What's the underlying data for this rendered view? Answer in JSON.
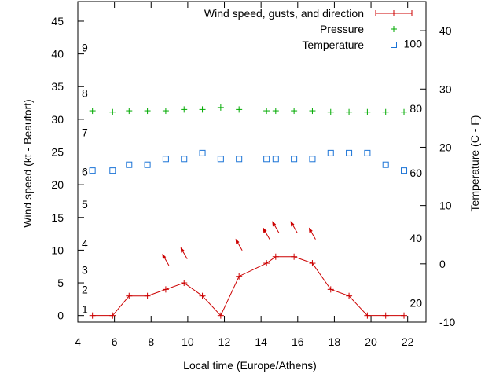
{
  "chart_data": {
    "type": "line",
    "title": "",
    "xlabel": "Local time (Europe/Athens)",
    "ylabel_left": "Wind speed (kt - Beaufort)",
    "ylabel_right": "Temperature (C - F)",
    "xlim": [
      4,
      23
    ],
    "ylim_left": [
      -1,
      48
    ],
    "ylim_right": [
      -10,
      45
    ],
    "x_ticks": [
      4,
      6,
      8,
      10,
      12,
      14,
      16,
      18,
      20,
      22
    ],
    "x_tick_labels": [
      "4",
      "6",
      "8",
      "10",
      "12",
      "14",
      "16",
      "18",
      "20",
      "22"
    ],
    "y_left_ticks": [
      0,
      5,
      10,
      15,
      20,
      25,
      30,
      35,
      40,
      45
    ],
    "y_left_tick_labels": [
      "0",
      "5",
      "10",
      "15",
      "20",
      "25",
      "30",
      "35",
      "40",
      "45"
    ],
    "y_right_ticks": [
      -10,
      0,
      10,
      20,
      30,
      40
    ],
    "y_right_tick_labels": [
      "-10",
      "0",
      "10",
      "20",
      "30",
      "40"
    ],
    "beaufort_labels": [
      {
        "label": "1",
        "kt": 1
      },
      {
        "label": "2",
        "kt": 4
      },
      {
        "label": "3",
        "kt": 7
      },
      {
        "label": "4",
        "kt": 11
      },
      {
        "label": "5",
        "kt": 17
      },
      {
        "label": "6",
        "kt": 22
      },
      {
        "label": "7",
        "kt": 28
      },
      {
        "label": "8",
        "kt": 34
      },
      {
        "label": "9",
        "kt": 41
      }
    ],
    "fahrenheit_labels": [
      {
        "label": "20",
        "celsius": -6.7
      },
      {
        "label": "40",
        "celsius": 4.4
      },
      {
        "label": "60",
        "celsius": 15.6
      },
      {
        "label": "80",
        "celsius": 26.7
      },
      {
        "label": "100",
        "celsius": 37.8
      }
    ],
    "legend": [
      {
        "name": "Wind speed, gusts, and direction",
        "color": "#cc0000",
        "style": "line+plus"
      },
      {
        "name": "Pressure",
        "color": "#00aa00",
        "style": "plus"
      },
      {
        "name": "Temperature",
        "color": "#1a73d6",
        "style": "square"
      }
    ],
    "wind_speed": {
      "name": "Wind speed, gusts, and direction",
      "x": [
        4.8,
        5.9,
        6.8,
        7.8,
        8.8,
        9.8,
        10.8,
        11.8,
        12.8,
        14.3,
        14.8,
        15.8,
        16.8,
        17.8,
        18.8,
        19.8,
        20.8,
        21.8
      ],
      "y": [
        0,
        0,
        3,
        3,
        4,
        5,
        3,
        0,
        6,
        8,
        9,
        9,
        8,
        4,
        3,
        0,
        0,
        0
      ]
    },
    "wind_direction_arrows": [
      {
        "x": 8.8,
        "kt": 8.5
      },
      {
        "x": 9.8,
        "kt": 9.5
      },
      {
        "x": 12.8,
        "kt": 10.8
      },
      {
        "x": 14.3,
        "kt": 12.5
      },
      {
        "x": 14.8,
        "kt": 13.5
      },
      {
        "x": 15.8,
        "kt": 13.5
      },
      {
        "x": 16.8,
        "kt": 12.5
      }
    ],
    "pressure": {
      "name": "Pressure",
      "x": [
        4.8,
        5.9,
        6.8,
        7.8,
        8.8,
        9.8,
        10.8,
        11.8,
        12.8,
        14.3,
        14.8,
        15.8,
        16.8,
        17.8,
        18.8,
        19.8,
        20.8,
        21.8
      ],
      "y": [
        31.3,
        31.1,
        31.3,
        31.3,
        31.3,
        31.5,
        31.5,
        31.8,
        31.5,
        31.3,
        31.3,
        31.3,
        31.3,
        31.1,
        31.1,
        31.1,
        31.1,
        31.1
      ]
    },
    "temperature": {
      "name": "Temperature",
      "x": [
        4.8,
        5.9,
        6.8,
        7.8,
        8.8,
        9.8,
        10.8,
        11.8,
        12.8,
        14.3,
        14.8,
        15.8,
        16.8,
        17.8,
        18.8,
        19.8,
        20.8,
        21.8
      ],
      "y": [
        16,
        16,
        17,
        17,
        18,
        18,
        19,
        18,
        18,
        18,
        18,
        18,
        18,
        19,
        19,
        19,
        17,
        16
      ]
    }
  }
}
